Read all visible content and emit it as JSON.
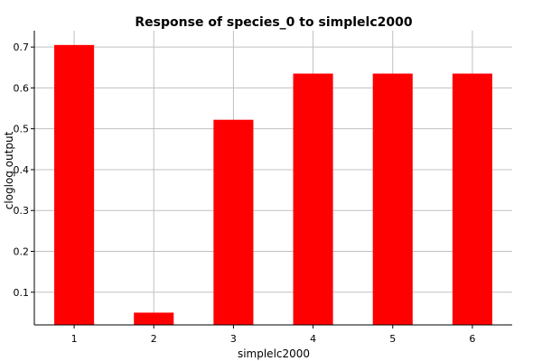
{
  "chart_data": {
    "type": "bar",
    "title": "Response of species_0 to simplelc2000",
    "xlabel": "simplelc2000",
    "ylabel": "cloglog output",
    "categories": [
      "1",
      "2",
      "3",
      "4",
      "5",
      "6"
    ],
    "values": [
      0.705,
      0.05,
      0.522,
      0.635,
      0.635,
      0.635
    ],
    "ylim": [
      0.02,
      0.74
    ],
    "yticks": [
      0.1,
      0.2,
      0.3,
      0.4,
      0.5,
      0.6,
      0.7
    ],
    "ytick_labels": [
      "0.1",
      "0.2",
      "0.3",
      "0.4",
      "0.5",
      "0.6",
      "0.7"
    ],
    "grid": true,
    "bar_color": "#ff0000",
    "grid_color": "#c0c0c0"
  }
}
